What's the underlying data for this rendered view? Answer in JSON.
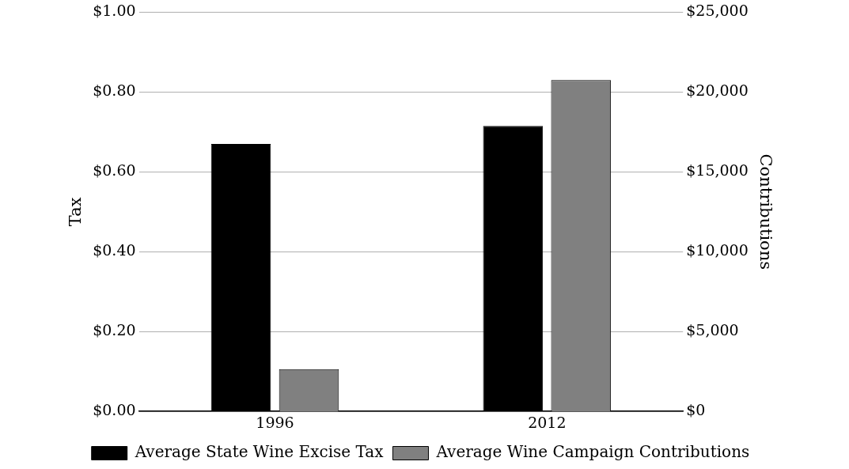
{
  "chart_data": {
    "type": "bar",
    "categories": [
      "1996",
      "2012"
    ],
    "series": [
      {
        "name": "Average State Wine Excise Tax",
        "color": "#000000",
        "values": [
          0.67,
          0.715
        ]
      },
      {
        "name": "Average Wine Campaign Contributions",
        "color": "#808080",
        "values": [
          2650,
          20750
        ],
        "axis": "y2"
      }
    ],
    "ylabel": "Tax",
    "y2label": "Contributions",
    "ylim": [
      0,
      1
    ],
    "yticks": [
      {
        "value": 0,
        "label": "$0.00"
      },
      {
        "value": 0.2,
        "label": "$0.20"
      },
      {
        "value": 0.4,
        "label": "$0.40"
      },
      {
        "value": 0.6,
        "label": "$0.60"
      },
      {
        "value": 0.8,
        "label": "$0.80"
      },
      {
        "value": 1,
        "label": "$1.00"
      }
    ],
    "y2lim": [
      0,
      25000
    ],
    "y2ticks": [
      {
        "value": 0,
        "label": "$0"
      },
      {
        "value": 5000,
        "label": "$5,000"
      },
      {
        "value": 10000,
        "label": "$10,000"
      },
      {
        "value": 15000,
        "label": "$15,000"
      },
      {
        "value": 20000,
        "label": "$20,000"
      },
      {
        "value": 25000,
        "label": "$25,000"
      }
    ],
    "grid": "y",
    "legend": "bottom"
  }
}
